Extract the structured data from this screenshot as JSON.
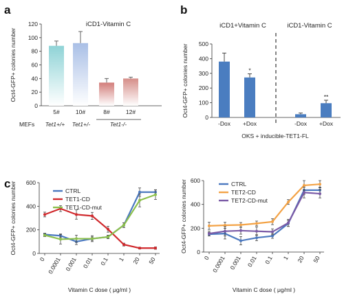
{
  "panels": {
    "a": "a",
    "b": "b",
    "c": "c"
  },
  "chart_data": [
    {
      "panel": "a",
      "type": "bar",
      "title": "iCD1-Vitamin C",
      "ylabel": "Oct4-GFP+ colonies number",
      "ylim": [
        0,
        120
      ],
      "yticks": [
        "0",
        "20",
        "40",
        "60",
        "80",
        "100",
        "120"
      ],
      "categories": [
        "5#",
        "10#",
        "8#",
        "12#"
      ],
      "values": [
        88,
        92,
        34,
        40
      ],
      "errors": [
        7,
        17,
        6,
        2
      ],
      "colors": [
        "#8fd3d6",
        "#a9bfe6",
        "#d27d7a",
        "#d58e89"
      ],
      "row_label": "MEFs",
      "groups": [
        "Tet1+/+",
        "Tet1+/-",
        "Tet1-/-"
      ]
    },
    {
      "panel": "b",
      "type": "bar",
      "titles": [
        "iCD1+Vitamin C",
        "iCD1-Vitamin C"
      ],
      "ylabel": "Oct4-GFP+ colonies number",
      "xlabel": "OKS + inducible-TET1-FL",
      "ylim": [
        0,
        500
      ],
      "yticks": [
        "0",
        "100",
        "200",
        "300",
        "400",
        "500"
      ],
      "categories": [
        "-Dox",
        "+Dox",
        "-Dox",
        "+Dox"
      ],
      "values": [
        380,
        272,
        22,
        97
      ],
      "errors": [
        58,
        25,
        8,
        20
      ],
      "significance": [
        "",
        "*",
        "",
        "**"
      ],
      "color": "#4a7dc0"
    },
    {
      "panel": "c-left",
      "type": "line",
      "ylabel": "Oct4-GFP+ colonies number",
      "xlabel": "Vitamin C dose ( μg/ml )",
      "categories": [
        "0",
        "0.0001",
        "0.001",
        "0.01",
        "0.1",
        "1",
        "20",
        "50"
      ],
      "ylim": [
        0,
        600
      ],
      "yticks": [
        "0",
        "200",
        "400",
        "600"
      ],
      "series": [
        {
          "name": "CTRL",
          "color": "#4a78bf",
          "values": [
            160,
            150,
            100,
            125,
            140,
            240,
            520,
            520
          ],
          "errors": [
            12,
            15,
            25,
            15,
            10,
            20,
            35,
            20
          ]
        },
        {
          "name": "TET1-CD",
          "color": "#d0282c",
          "values": [
            330,
            380,
            330,
            318,
            205,
            75,
            45,
            45
          ],
          "errors": [
            20,
            25,
            40,
            30,
            25,
            12,
            8,
            10
          ]
        },
        {
          "name": "TET1-CD-mut",
          "color": "#8cc04b",
          "values": [
            155,
            120,
            125,
            125,
            140,
            240,
            450,
            498
          ],
          "errors": [
            12,
            40,
            30,
            25,
            15,
            20,
            55,
            40
          ]
        }
      ]
    },
    {
      "panel": "c-right",
      "type": "line",
      "ylabel": "Oct4-GFP+ colonies number",
      "xlabel": "Vitamin C dose ( μg/ml )",
      "categories": [
        "0",
        "0.0001",
        "0.001",
        "0.01",
        "0.1",
        "1",
        "20",
        "50"
      ],
      "ylim": [
        0,
        600
      ],
      "yticks": [
        "0",
        "200",
        "400",
        "600"
      ],
      "series": [
        {
          "name": "CTRL",
          "color": "#4a78bf",
          "values": [
            150,
            155,
            95,
            120,
            135,
            240,
            520,
            520
          ],
          "errors": [
            15,
            45,
            35,
            25,
            20,
            25,
            35,
            25
          ]
        },
        {
          "name": "TET2-CD",
          "color": "#f3a245",
          "values": [
            220,
            225,
            228,
            240,
            255,
            420,
            560,
            570
          ],
          "errors": [
            30,
            25,
            20,
            20,
            25,
            20,
            40,
            30
          ]
        },
        {
          "name": "TET2-CD-mut",
          "color": "#7a5aa6",
          "values": [
            155,
            175,
            180,
            175,
            170,
            245,
            500,
            490
          ],
          "errors": [
            20,
            40,
            30,
            35,
            25,
            30,
            45,
            35
          ]
        }
      ]
    }
  ]
}
